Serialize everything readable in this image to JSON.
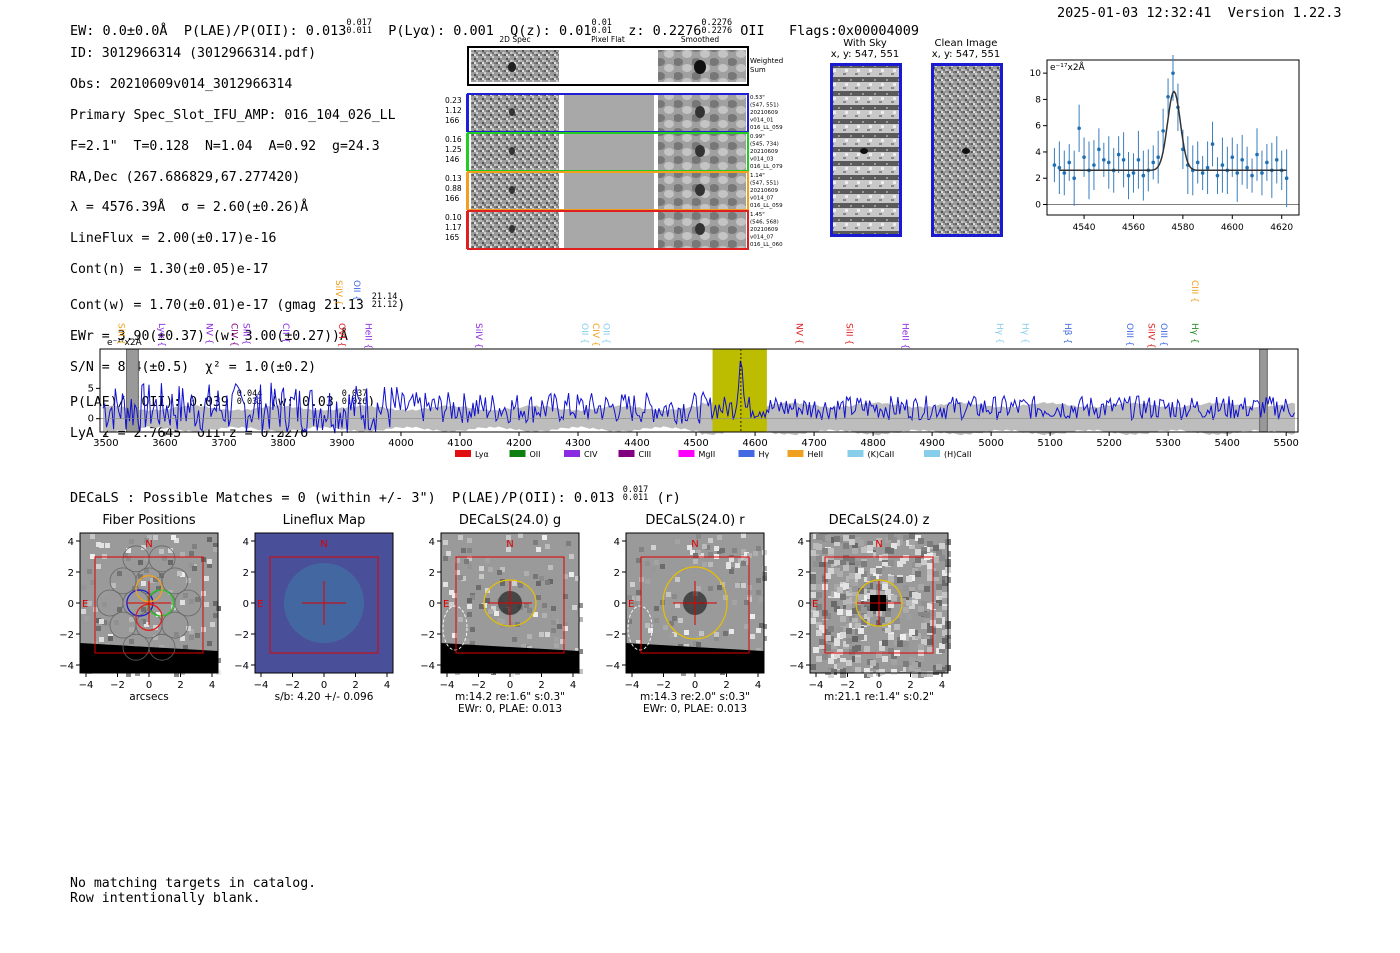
{
  "header": {
    "ew": "EW: 0.0±0.0Å",
    "plae_label": "P(LAE)/P(OII): 0.013",
    "plae_hi": "0.017",
    "plae_lo": "0.011",
    "plya": "P(Lyα): 0.001",
    "qz_label": "Q(z): 0.01",
    "qz_hi": "0.01",
    "qz_lo": "0.01",
    "z_label": "z: 0.2276",
    "z_hi": "0.2276",
    "z_lo": "0.2276",
    "z_line": "OII",
    "flags": "Flags:0x00004009",
    "timestamp": "2025-01-03 12:32:41",
    "version": "Version 1.22.3"
  },
  "info": {
    "id": "ID: 3012966314 (3012966314.pdf)",
    "obs": "Obs: 20210609v014_3012966314",
    "primary": "Primary Spec_Slot_IFU_AMP: 016_104_026_LL",
    "fiber": "F=2.1\"  T=0.128  N=1.04  A=0.92  g=24.3",
    "radec": "RA,Dec (267.686829,67.277420)",
    "lambda": "λ = 4576.39Å  σ = 2.60(±0.26)Å",
    "lineflux": "LineFlux = 2.00(±0.17)e-16",
    "contn": "Cont(n) = 1.30(±0.05)e-17",
    "contw": "Cont(w) = 1.70(±0.01)e-17 (gmag 21.13",
    "contw_hi": "21.14",
    "contw_lo": "21.12",
    "ewr": "EWr = 3.90(±0.37) (w: 3.00(±0.27))Å",
    "sn": "S/N = 8.4(±0.5)  χ² = 1.0(±0.2)",
    "plae": "P(LAE)/P(OII): 0.039",
    "plae_hi": "0.044",
    "plae_lo": "0.033",
    "plae_w": "(w: 0.03",
    "plae_w_hi": "0.037",
    "plae_w_lo": "0.026",
    "lyaz": "LyA z = 2.7645  OII z = 0.2276"
  },
  "cutouts": {
    "col_headers": [
      "2D Spec",
      "Pixel Flat",
      "Smoothed"
    ],
    "weighted_sum": "Weighted Sum",
    "rows": [
      {
        "left": [
          "0.23",
          "1.12",
          "166"
        ],
        "right": [
          "0.53\"",
          "(547, 551)",
          "20210609",
          "v014_01",
          "016_LL_059"
        ],
        "color": "#1f1fd6"
      },
      {
        "left": [
          "0.16",
          "1.25",
          "146"
        ],
        "right": [
          "0.99\"",
          "(545, 734)",
          "20210609",
          "v014_03",
          "016_LL_079"
        ],
        "color": "#22cc22"
      },
      {
        "left": [
          "0.13",
          "0.88",
          "166"
        ],
        "right": [
          "1.14\"",
          "(547, 551)",
          "20210609",
          "v014_07",
          "016_LL_059"
        ],
        "color": "#f0a020"
      },
      {
        "left": [
          "0.10",
          "1.17",
          "165"
        ],
        "right": [
          "1.45\"",
          "(546, 568)",
          "20210609",
          "v014_07",
          "016_LL_060"
        ],
        "color": "#e02020"
      }
    ]
  },
  "sky": {
    "with_sky_title": "With Sky",
    "with_sky_xy": "x, y: 547, 551",
    "clean_title": "Clean Image",
    "clean_xy": "x, y: 547, 551"
  },
  "zoom_chart": {
    "type": "scatter",
    "title": "",
    "unit_label": "e⁻¹⁷x2Å",
    "xlim": [
      4525,
      4627
    ],
    "ylim": [
      -0.8,
      11
    ],
    "xticks": [
      4540,
      4560,
      4580,
      4600,
      4620
    ],
    "yticks": [
      0,
      2,
      4,
      6,
      8,
      10
    ],
    "x": [
      4528,
      4530,
      4532,
      4534,
      4536,
      4538,
      4540,
      4542,
      4544,
      4546,
      4548,
      4550,
      4552,
      4554,
      4556,
      4558,
      4560,
      4562,
      4564,
      4566,
      4568,
      4570,
      4572,
      4574,
      4576,
      4578,
      4580,
      4582,
      4584,
      4586,
      4588,
      4590,
      4592,
      4594,
      4596,
      4598,
      4600,
      4602,
      4604,
      4606,
      4608,
      4610,
      4612,
      4614,
      4616,
      4618,
      4620,
      4622
    ],
    "y": [
      3.0,
      2.8,
      2.4,
      3.2,
      2.0,
      5.8,
      3.6,
      2.6,
      3.0,
      4.2,
      3.4,
      3.2,
      2.6,
      3.8,
      3.4,
      2.2,
      2.4,
      3.4,
      2.2,
      2.6,
      3.2,
      3.6,
      5.6,
      8.2,
      10.0,
      7.4,
      4.2,
      3.0,
      2.6,
      3.2,
      2.4,
      2.8,
      4.6,
      2.2,
      3.0,
      2.6,
      3.6,
      2.4,
      3.4,
      2.8,
      2.2,
      3.8,
      2.4,
      3.2,
      2.6,
      3.4,
      2.6,
      2.0
    ],
    "fit_peak": 8.6,
    "fit_center": 4576.4,
    "fit_sigma": 2.6,
    "fit_cont": 2.6
  },
  "spectrum_chart": {
    "type": "line",
    "unit_label": "e⁻¹⁷x2Å",
    "xlim": [
      3490,
      5520
    ],
    "ylim": [
      -2.2,
      11.5
    ],
    "xticks": [
      3500,
      3600,
      3700,
      3800,
      3900,
      4000,
      4100,
      4200,
      4300,
      4400,
      4500,
      4600,
      4700,
      4800,
      4900,
      5000,
      5100,
      5200,
      5300,
      5400,
      5500
    ],
    "yticks": [
      0,
      5
    ],
    "highlight": [
      4528,
      4620
    ],
    "marker": 4576,
    "masked": [
      [
        3535,
        3555
      ],
      [
        5455,
        5468
      ]
    ],
    "series_color": "#1010d0",
    "line_labels": [
      {
        "text": "SiII",
        "x": 3516,
        "row": "low",
        "color": "#f0a020"
      },
      {
        "text": "Lyα",
        "x": 3585,
        "row": "low",
        "color": "#8a2be2"
      },
      {
        "text": "NV",
        "x": 3665,
        "row": "low",
        "color": "#8a2be2"
      },
      {
        "text": "CIV",
        "x": 3708,
        "row": "low",
        "color": "#800080"
      },
      {
        "text": "SiII",
        "x": 3728,
        "row": "low",
        "color": "#8a2be2"
      },
      {
        "text": "CII",
        "x": 3795,
        "row": "low",
        "color": "#8a2be2"
      },
      {
        "text": "SiIV",
        "x": 3885,
        "row": "high",
        "color": "#f0a020"
      },
      {
        "text": "OII",
        "x": 3915,
        "row": "high",
        "color": "#4169e1"
      },
      {
        "text": "OVI",
        "x": 3890,
        "row": "low",
        "color": "#e02020"
      },
      {
        "text": "HeII",
        "x": 3935,
        "row": "low",
        "color": "#8a2be2"
      },
      {
        "text": "SiIV",
        "x": 4122,
        "row": "low",
        "color": "#8a2be2"
      },
      {
        "text": "OII",
        "x": 4302,
        "row": "low",
        "color": "#87ceeb"
      },
      {
        "text": "CIV",
        "x": 4320,
        "row": "low",
        "color": "#f0a020"
      },
      {
        "text": "OII",
        "x": 4338,
        "row": "low",
        "color": "#87ceeb"
      },
      {
        "text": "NV",
        "x": 4665,
        "row": "low",
        "color": "#e02020"
      },
      {
        "text": "SiII",
        "x": 4750,
        "row": "low",
        "color": "#e02020"
      },
      {
        "text": "HeII",
        "x": 4845,
        "row": "low",
        "color": "#8a2be2"
      },
      {
        "text": "Hγ",
        "x": 5005,
        "row": "low",
        "color": "#87ceeb"
      },
      {
        "text": "Hγ",
        "x": 5048,
        "row": "low",
        "color": "#87ceeb"
      },
      {
        "text": "Hβ",
        "x": 5120,
        "row": "low",
        "color": "#4169e1"
      },
      {
        "text": "OIII",
        "x": 5225,
        "row": "low",
        "color": "#4169e1"
      },
      {
        "text": "SiIV",
        "x": 5262,
        "row": "low",
        "color": "#e02020"
      },
      {
        "text": "OIII",
        "x": 5283,
        "row": "low",
        "color": "#4169e1"
      },
      {
        "text": "CIII",
        "x": 5335,
        "row": "high",
        "color": "#f0a020"
      },
      {
        "text": "Hγ",
        "x": 5335,
        "row": "low",
        "color": "#228b22"
      }
    ],
    "legend": [
      {
        "label": "Lyα",
        "color": "#e01010"
      },
      {
        "label": "OII",
        "color": "#108010"
      },
      {
        "label": "CIV",
        "color": "#8a2be2"
      },
      {
        "label": "CIII",
        "color": "#800080"
      },
      {
        "label": "MgII",
        "color": "#ff00ff"
      },
      {
        "label": "Hγ",
        "color": "#4169e1"
      },
      {
        "label": "HeII",
        "color": "#f0a020"
      },
      {
        "label": "(K)CaII",
        "color": "#87ceeb"
      },
      {
        "label": "(H)CaII",
        "color": "#87ceeb"
      }
    ]
  },
  "decals": {
    "line": "DECaLS : Possible Matches = 0 (within +/- 3\")  P(LAE)/P(OII): 0.013",
    "plae_hi": "0.017",
    "plae_lo": "0.011",
    "band": "(r)"
  },
  "panels": [
    {
      "title": "Fiber Positions",
      "cap1": "arcsecs",
      "cap2": ""
    },
    {
      "title": "Lineflux Map",
      "cap1": "s/b: 4.20 +/- 0.096",
      "cap2": ""
    },
    {
      "title": "DECaLS(24.0) g",
      "cap1": "m:14.2  re:1.6\"  s:0.3\"",
      "cap2": "EWr: 0, PLAE: 0.013"
    },
    {
      "title": "DECaLS(24.0) r",
      "cap1": "m:14.3  re:2.0\"  s:0.3\"",
      "cap2": "EWr: 0, PLAE: 0.013"
    },
    {
      "title": "DECaLS(24.0) z",
      "cap1": "m:21.1  re:1.4\"  s:0.2\"",
      "cap2": ""
    }
  ],
  "panel_axis": {
    "ticks": [
      "−4",
      "−2",
      "0",
      "2",
      "4"
    ],
    "yticks": [
      "4",
      "2",
      "0",
      "−2",
      "−4"
    ],
    "north": "N",
    "east": "E"
  },
  "footer": {
    "line1": "No matching targets in catalog.",
    "line2": "Row intentionally blank."
  }
}
